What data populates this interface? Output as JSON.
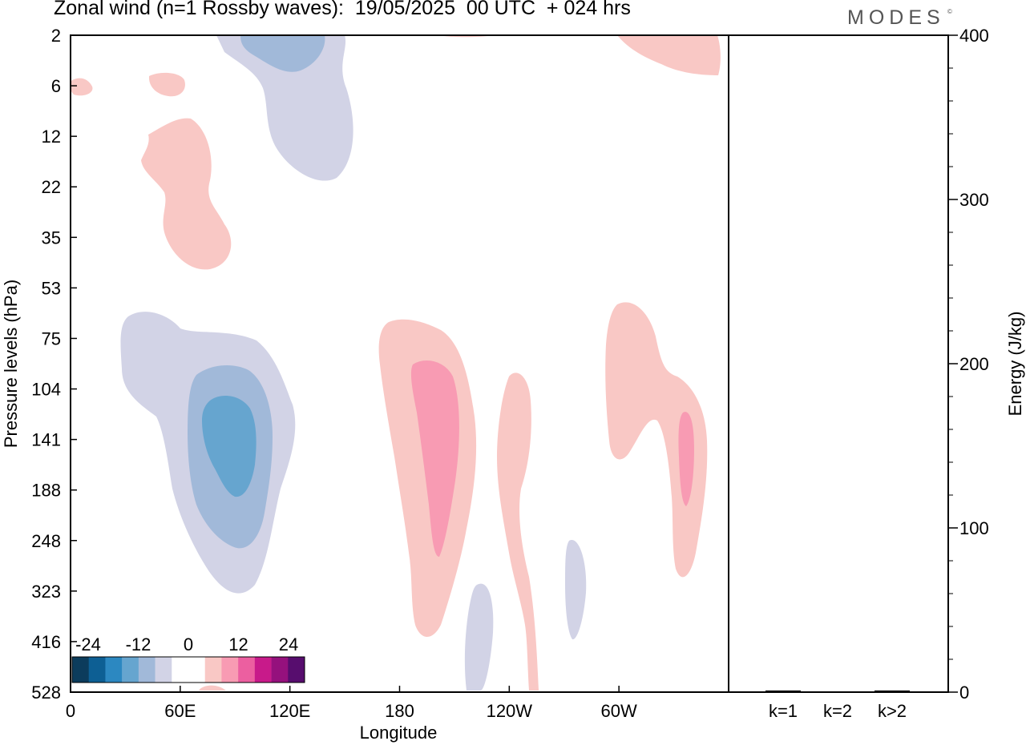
{
  "title": "Zonal wind (n=1 Rossby waves):  19/05/2025  00 UTC  + 024 hrs",
  "brand": "MODES",
  "brand_mark": "©",
  "chart_data": [
    {
      "type": "contour",
      "title": "Zonal wind (n=1 Rossby waves):  19/05/2025  00 UTC  + 024 hrs",
      "xlabel": "Longitude",
      "ylabel": "Pressure levels (hPa)",
      "x_ticks": [
        "0",
        "60E",
        "120E",
        "180",
        "120W",
        "60W"
      ],
      "x_tick_values": [
        0,
        60,
        120,
        180,
        240,
        300
      ],
      "xlim": [
        0,
        360
      ],
      "y_ticks": [
        "2",
        "6",
        "12",
        "22",
        "35",
        "53",
        "75",
        "104",
        "141",
        "188",
        "248",
        "323",
        "416",
        "528"
      ],
      "colorbar": {
        "tick_labels": [
          "-24",
          "-12",
          "0",
          "12",
          "24"
        ],
        "colors": [
          "#0c3c5c",
          "#0d5f94",
          "#2c88c1",
          "#66a5cf",
          "#a1b9d9",
          "#d2d3e6",
          "#ffffff",
          "#ffffff",
          "#f9c8c5",
          "#f89bb3",
          "#ec5fa0",
          "#c81a8a",
          "#95117d",
          "#570d6e"
        ]
      },
      "features": [
        {
          "sign": "negative",
          "level": 1,
          "lon_center": 96,
          "pressure_center": "141"
        },
        {
          "sign": "negative",
          "level": 3,
          "lon_center": 88,
          "pressure_center": "141"
        },
        {
          "sign": "negative",
          "level": 1,
          "lon_center": 130,
          "pressure_center": "6"
        },
        {
          "sign": "positive",
          "level": 2,
          "lon_center": 200,
          "pressure_center": "141"
        },
        {
          "sign": "positive",
          "level": 1,
          "lon_center": 235,
          "pressure_center": "248"
        },
        {
          "sign": "positive",
          "level": 2,
          "lon_center": 339,
          "pressure_center": "141"
        },
        {
          "sign": "negative",
          "level": 1,
          "lon_center": 275,
          "pressure_center": "323"
        },
        {
          "sign": "positive",
          "level": 1,
          "lon_center": 72,
          "pressure_center": "22"
        }
      ]
    },
    {
      "type": "bar",
      "ylabel": "Energy (J/kg)",
      "categories": [
        "k=1",
        "k=2",
        "k>2"
      ],
      "values": [
        1,
        0,
        1
      ],
      "ylim": [
        0,
        400
      ],
      "y_ticks": [
        "0",
        "100",
        "200",
        "300",
        "400"
      ]
    }
  ]
}
